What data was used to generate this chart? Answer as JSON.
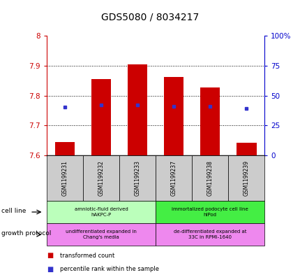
{
  "title": "GDS5080 / 8034217",
  "samples": [
    "GSM1199231",
    "GSM1199232",
    "GSM1199233",
    "GSM1199237",
    "GSM1199238",
    "GSM1199239"
  ],
  "bar_bottom": [
    7.6,
    7.6,
    7.6,
    7.6,
    7.6,
    7.6
  ],
  "bar_top": [
    7.645,
    7.855,
    7.905,
    7.862,
    7.828,
    7.643
  ],
  "blue_y": [
    7.762,
    7.768,
    7.769,
    7.764,
    7.765,
    7.757
  ],
  "ylim_left": [
    7.6,
    8.0
  ],
  "ylim_right": [
    0,
    100
  ],
  "yticks_left": [
    7.6,
    7.7,
    7.8,
    7.9
  ],
  "ytick_labels_left": [
    "7.6",
    "7.7",
    "7.8",
    "7.9"
  ],
  "ytick_label_top_left": "8",
  "yticks_right": [
    0,
    25,
    50,
    75,
    100
  ],
  "ytick_labels_right": [
    "0",
    "25",
    "50",
    "75",
    "100%"
  ],
  "cell_line_groups": [
    {
      "label": "amniotic-fluid derived\nhAKPC-P",
      "start": 0,
      "end": 3,
      "color": "#bbffbb"
    },
    {
      "label": "immortalized podocyte cell line\nhlPod",
      "start": 3,
      "end": 6,
      "color": "#44ee44"
    }
  ],
  "growth_protocol_groups": [
    {
      "label": "undifferentiated expanded in\nChang's media",
      "start": 0,
      "end": 3,
      "color": "#ee88ee"
    },
    {
      "label": "de-differentiated expanded at\n33C in RPMI-1640",
      "start": 3,
      "end": 6,
      "color": "#ee88ee"
    }
  ],
  "bar_color": "#cc0000",
  "blue_color": "#3333cc",
  "left_axis_color": "#cc0000",
  "right_axis_color": "#0000cc",
  "sample_box_color": "#cccccc",
  "legend_items": [
    {
      "color": "#cc0000",
      "label": "transformed count"
    },
    {
      "color": "#3333cc",
      "label": "percentile rank within the sample"
    }
  ]
}
